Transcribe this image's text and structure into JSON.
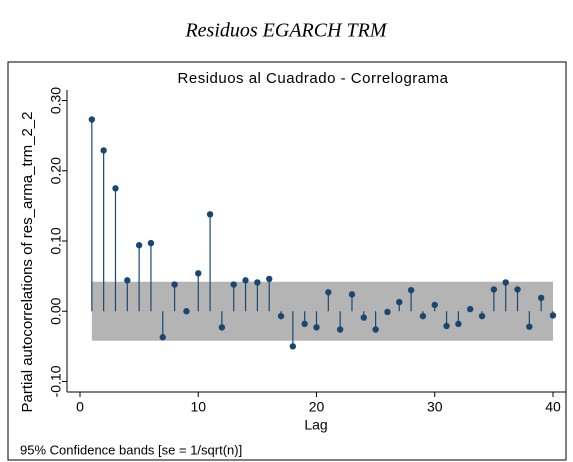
{
  "header": {
    "title": "Residuos EGARCH TRM"
  },
  "chart_data": {
    "type": "stem",
    "title": "Residuos al Cuadrado - Correlograma",
    "x_label": "Lag",
    "y_label": "Partial autocorrelations of res_arma_trm_2_2",
    "note": "95% Confidence bands [se = 1/sqrt(n)]",
    "x": [
      1,
      2,
      3,
      4,
      5,
      6,
      7,
      8,
      9,
      10,
      11,
      12,
      13,
      14,
      15,
      16,
      17,
      18,
      19,
      20,
      21,
      22,
      23,
      24,
      25,
      26,
      27,
      28,
      29,
      30,
      31,
      32,
      33,
      34,
      35,
      36,
      37,
      38,
      39,
      40
    ],
    "values": [
      0.273,
      0.229,
      0.175,
      0.044,
      0.094,
      0.097,
      -0.037,
      0.038,
      0.0,
      0.054,
      0.138,
      -0.023,
      0.038,
      0.044,
      0.041,
      0.046,
      -0.007,
      -0.05,
      -0.018,
      -0.023,
      0.027,
      -0.026,
      0.024,
      -0.009,
      -0.026,
      -0.001,
      0.013,
      0.03,
      -0.007,
      0.009,
      -0.021,
      -0.018,
      0.003,
      -0.007,
      0.031,
      0.041,
      0.031,
      -0.022,
      0.019,
      -0.006
    ],
    "color": "#1a476f",
    "confidence_band": [
      -0.042,
      0.042
    ],
    "band_color": "#b4b4b4",
    "xlim": [
      -1.1,
      41.1
    ],
    "ylim": [
      -0.115,
      0.315
    ],
    "xticks": [
      0,
      10,
      20,
      30,
      40
    ],
    "yticks": [
      {
        "value": -0.1,
        "label": "-0.10"
      },
      {
        "value": 0,
        "label": "0.00"
      },
      {
        "value": 0.1,
        "label": "0.10"
      },
      {
        "value": 0.2,
        "label": "0.20"
      },
      {
        "value": 0.3,
        "label": "0.30"
      }
    ]
  }
}
